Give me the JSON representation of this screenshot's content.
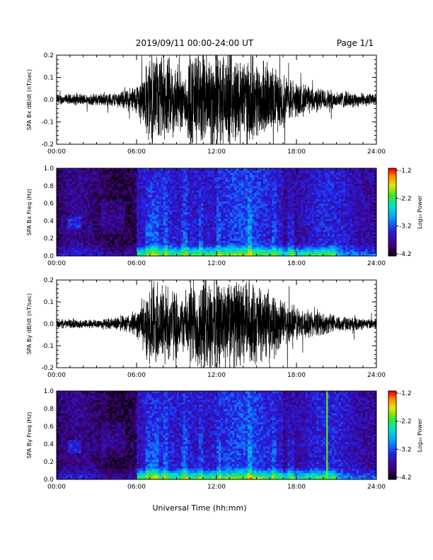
{
  "header": {
    "date_range": "2019/09/11   00:00-24:00 UT",
    "page": "Page 1/1"
  },
  "xlabel": "Universal Time (hh:mm)",
  "colors": {
    "background": "#000000",
    "frame": "#000000",
    "green_line": "#55ff00"
  },
  "chart_data": [
    {
      "type": "line",
      "ylabel": "SPA Bx dB/dt (nT/sec)",
      "x_ticks": [
        "00:00",
        "06:00",
        "12:00",
        "18:00",
        "24:00"
      ],
      "y_ticks": [
        "0.2",
        "0.1",
        "0.0",
        "-0.1",
        "-0.2"
      ],
      "xlim": [
        0,
        24
      ],
      "ylim": [
        -0.2,
        0.2
      ],
      "envelope": {
        "x_hours": [
          0,
          2,
          4,
          5,
          6,
          6.5,
          7,
          8,
          9,
          9.5,
          10,
          11,
          12,
          13,
          14,
          15,
          16,
          17,
          18,
          19,
          20,
          21,
          22,
          23,
          24
        ],
        "amplitude": [
          0.025,
          0.025,
          0.03,
          0.04,
          0.07,
          0.12,
          0.2,
          0.2,
          0.16,
          0.12,
          0.22,
          0.22,
          0.22,
          0.2,
          0.2,
          0.18,
          0.15,
          0.12,
          0.08,
          0.06,
          0.05,
          0.04,
          0.035,
          0.03,
          0.025
        ]
      }
    },
    {
      "type": "heatmap",
      "ylabel": "SPA Bx Freq (Hz)",
      "x_ticks": [
        "00:00",
        "06:00",
        "12:00",
        "18:00",
        "24:00"
      ],
      "y_ticks": [
        "1.0",
        "0.8",
        "0.6",
        "0.4",
        "0.2",
        "0.0"
      ],
      "xlim": [
        0,
        24
      ],
      "ylim": [
        0.0,
        1.0
      ],
      "colorbar": {
        "label": "Log₁₀ Power",
        "ticks": [
          "-1.2",
          "-2.2",
          "-3.2",
          "-4.2"
        ],
        "range": [
          -4.2,
          -1.2
        ]
      },
      "green_line_hour": null
    },
    {
      "type": "line",
      "ylabel": "SPA By dB/dt (nT/sec)",
      "x_ticks": [
        "00:00",
        "06:00",
        "12:00",
        "18:00",
        "24:00"
      ],
      "y_ticks": [
        "0.2",
        "0.1",
        "0.0",
        "-0.1",
        "-0.2"
      ],
      "xlim": [
        0,
        24
      ],
      "ylim": [
        -0.2,
        0.2
      ],
      "envelope": {
        "x_hours": [
          0,
          2,
          4,
          5,
          6,
          6.5,
          7,
          8,
          9,
          9.5,
          10,
          11,
          12,
          13,
          14,
          15,
          16,
          17,
          18,
          19,
          20,
          21,
          22,
          23,
          24
        ],
        "amplitude": [
          0.02,
          0.02,
          0.025,
          0.035,
          0.06,
          0.1,
          0.2,
          0.2,
          0.15,
          0.12,
          0.2,
          0.22,
          0.22,
          0.2,
          0.2,
          0.18,
          0.14,
          0.11,
          0.08,
          0.06,
          0.05,
          0.04,
          0.03,
          0.025,
          0.02
        ]
      }
    },
    {
      "type": "heatmap",
      "ylabel": "SPA By Freq (Hz)",
      "x_ticks": [
        "00:00",
        "06:00",
        "12:00",
        "18:00",
        "24:00"
      ],
      "y_ticks": [
        "1.0",
        "0.8",
        "0.6",
        "0.4",
        "0.2",
        "0.0"
      ],
      "xlim": [
        0,
        24
      ],
      "ylim": [
        0.0,
        1.0
      ],
      "colorbar": {
        "label": "Log₁₀ Power",
        "ticks": [
          "-1.2",
          "-2.2",
          "-3.2",
          "-4.2"
        ],
        "range": [
          -4.2,
          -1.2
        ]
      },
      "green_line_hour": 20.3
    }
  ]
}
